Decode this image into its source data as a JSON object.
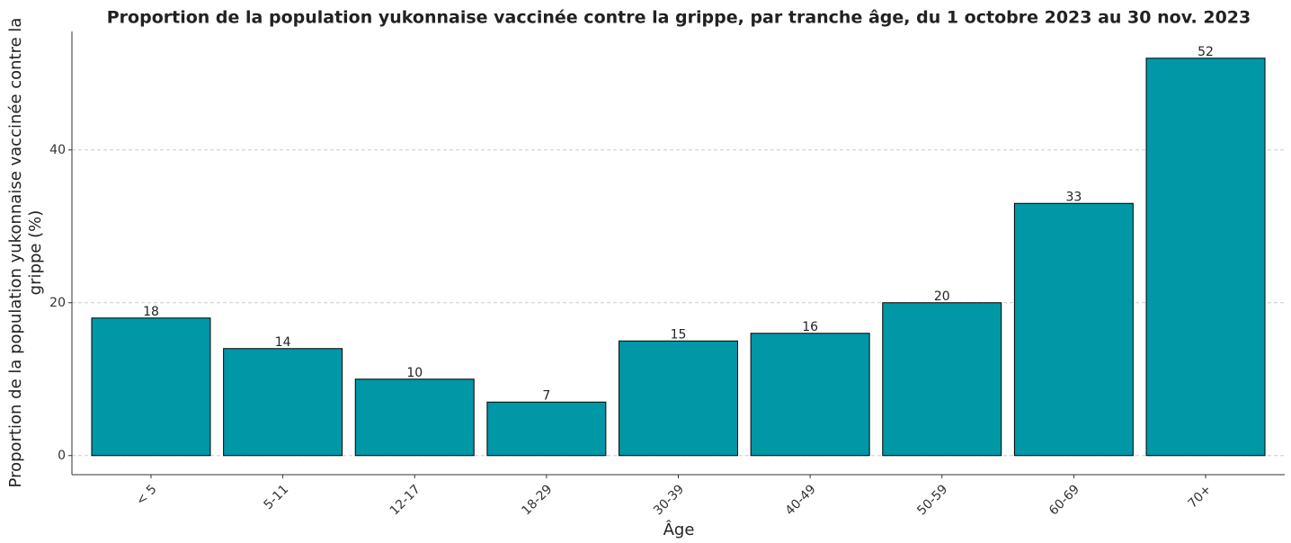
{
  "chart_data": {
    "type": "bar",
    "title": "Proportion de la population yukonnaise vaccinée contre la grippe, par tranche âge, du 1 octobre 2023 au 30 nov. 2023",
    "x_label": "Âge",
    "y_label": [
      "Proportion de la population yukonnaise vaccinée contre la",
      "grippe (%)"
    ],
    "categories": [
      "< 5",
      "5-11",
      "12-17",
      "18-29",
      "30-39",
      "40-49",
      "50-59",
      "60-69",
      "70+"
    ],
    "values": [
      18,
      14,
      10,
      7,
      15,
      16,
      20,
      33,
      52
    ],
    "color": "#0097a7",
    "ylim": [
      -2.5,
      55.5
    ],
    "yticks": [
      0,
      20,
      40
    ],
    "grid": true
  }
}
